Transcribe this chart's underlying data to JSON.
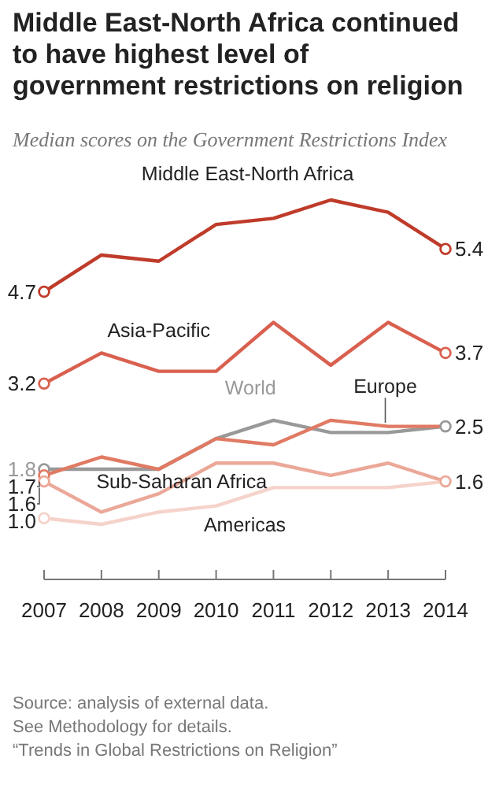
{
  "chart_data": {
    "type": "line",
    "title": "Middle East-North Africa continued to have highest level of government restrictions on religion",
    "subtitle": "Median scores on the Government Restrictions Index",
    "categories": [
      "2007",
      "2008",
      "2009",
      "2010",
      "2011",
      "2012",
      "2013",
      "2014"
    ],
    "tick_labels": "x",
    "series": [
      {
        "name": "Middle East-North Africa",
        "color": "#bf3b2a",
        "values": [
          4.7,
          5.3,
          5.2,
          5.8,
          5.9,
          6.2,
          6.0,
          5.4
        ],
        "value_labels": [
          "4.7",
          null,
          null,
          null,
          null,
          null,
          null,
          "5.4"
        ]
      },
      {
        "name": "Asia-Pacific",
        "color": "#d9604f",
        "values": [
          3.2,
          3.7,
          3.4,
          3.4,
          4.2,
          3.5,
          4.2,
          3.7
        ],
        "value_labels": [
          "3.2",
          null,
          null,
          null,
          null,
          null,
          null,
          "3.7"
        ]
      },
      {
        "name": "World",
        "color": "#999999",
        "values": [
          1.8,
          1.8,
          1.8,
          2.3,
          2.6,
          2.4,
          2.4,
          2.5
        ],
        "value_labels": [
          "1.8",
          null,
          null,
          null,
          null,
          null,
          null,
          "2.5"
        ]
      },
      {
        "name": "Europe",
        "color": "#e07a63",
        "values": [
          1.7,
          2.0,
          1.8,
          2.3,
          2.2,
          2.6,
          2.5,
          2.5
        ],
        "value_labels": [
          "1.7",
          null,
          null,
          null,
          null,
          null,
          null,
          null
        ]
      },
      {
        "name": "Sub-Saharan Africa",
        "color": "#eba898",
        "values": [
          1.6,
          1.1,
          1.4,
          1.9,
          1.9,
          1.7,
          1.9,
          1.6
        ],
        "value_labels": [
          "1.6",
          null,
          null,
          null,
          null,
          null,
          null,
          "1.6"
        ]
      },
      {
        "name": "Americas",
        "color": "#f5d3ca",
        "values": [
          1.0,
          0.9,
          1.1,
          1.2,
          1.5,
          1.5,
          1.5,
          1.6
        ],
        "value_labels": [
          "1.0",
          null,
          null,
          null,
          null,
          null,
          null,
          null
        ]
      }
    ],
    "annotations": [
      "Source: analysis of external data.",
      "See Methodology for details.",
      "“Trends in Global Restrictions on Religion”"
    ]
  }
}
